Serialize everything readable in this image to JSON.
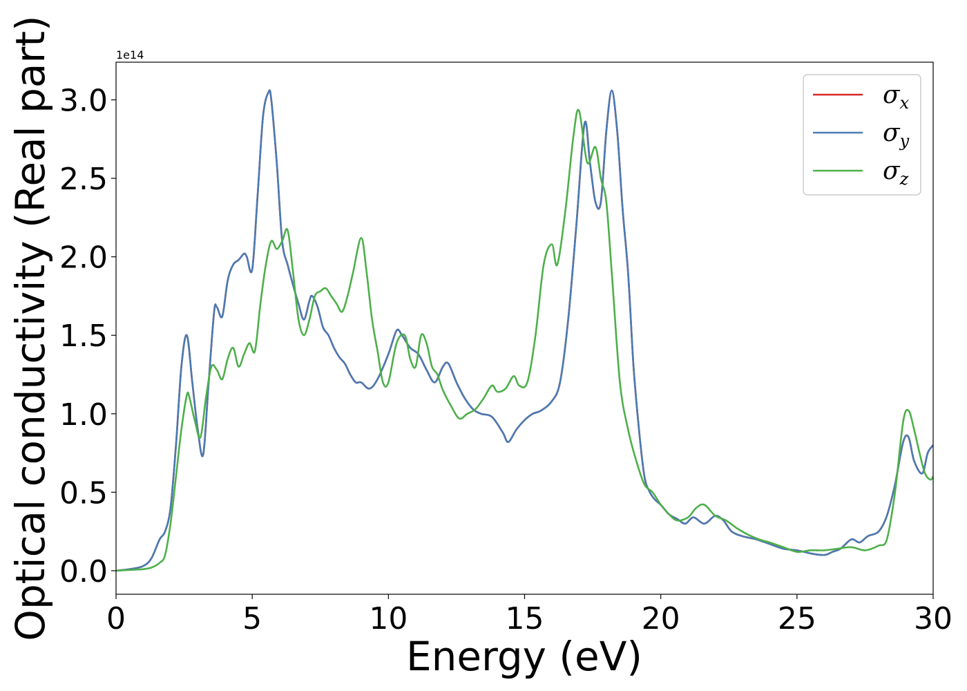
{
  "chart_data": {
    "type": "line",
    "title": "",
    "xlabel": "Energy (eV)",
    "ylabel": "Optical conductivity (Real part)",
    "y_offset_label": "1e14",
    "xlim": [
      0,
      30
    ],
    "ylim": [
      -0.15,
      3.24
    ],
    "xticks": [
      0,
      5,
      10,
      15,
      20,
      25,
      30
    ],
    "xtick_labels": [
      "0",
      "5",
      "10",
      "15",
      "20",
      "25",
      "30"
    ],
    "yticks": [
      0.0,
      0.5,
      1.0,
      1.5,
      2.0,
      2.5,
      3.0
    ],
    "ytick_labels": [
      "0.0",
      "0.5",
      "1.0",
      "1.5",
      "2.0",
      "2.5",
      "3.0"
    ],
    "grid": false,
    "legend_position": "top-right",
    "series": [
      {
        "name": "σx",
        "symbol": "σ",
        "subscript": "x",
        "color": "#d62728",
        "x": [
          0,
          0.5,
          1,
          1.3,
          1.6,
          1.8,
          2.0,
          2.2,
          2.4,
          2.6,
          2.8,
          3.0,
          3.2,
          3.4,
          3.6,
          3.7,
          3.9,
          4.1,
          4.3,
          4.5,
          4.7,
          4.8,
          5.0,
          5.2,
          5.4,
          5.6,
          5.7,
          5.9,
          6.1,
          6.3,
          6.5,
          6.7,
          6.9,
          7.1,
          7.2,
          7.4,
          7.6,
          7.8,
          8.0,
          8.2,
          8.4,
          8.6,
          8.8,
          9.0,
          9.3,
          9.6,
          10.0,
          10.3,
          10.5,
          10.8,
          11.1,
          11.4,
          11.7,
          12.0,
          12.2,
          12.5,
          12.8,
          13.1,
          13.4,
          13.8,
          14.2,
          14.4,
          14.7,
          15.0,
          15.3,
          15.6,
          16.0,
          16.3,
          16.6,
          16.9,
          17.2,
          17.4,
          17.6,
          17.8,
          18.0,
          18.2,
          18.4,
          18.6,
          18.8,
          19.0,
          19.2,
          19.4,
          19.6,
          19.8,
          20.0,
          20.3,
          20.6,
          20.9,
          21.2,
          21.6,
          22.0,
          22.3,
          22.6,
          23.0,
          23.5,
          24.0,
          24.5,
          25.0,
          25.5,
          26.0,
          26.3,
          26.6,
          27.0,
          27.3,
          27.6,
          28.0,
          28.3,
          28.6,
          28.9,
          29.1,
          29.3,
          29.6,
          29.8,
          30.0
        ],
        "values": [
          0,
          0.01,
          0.03,
          0.08,
          0.2,
          0.25,
          0.4,
          0.8,
          1.3,
          1.5,
          1.2,
          0.9,
          0.74,
          1.2,
          1.65,
          1.68,
          1.62,
          1.85,
          1.95,
          1.98,
          2.02,
          2.0,
          1.92,
          2.4,
          2.9,
          3.05,
          3.0,
          2.6,
          2.1,
          1.95,
          1.82,
          1.7,
          1.6,
          1.72,
          1.75,
          1.68,
          1.55,
          1.5,
          1.42,
          1.36,
          1.32,
          1.25,
          1.2,
          1.2,
          1.16,
          1.22,
          1.38,
          1.53,
          1.5,
          1.42,
          1.38,
          1.28,
          1.2,
          1.3,
          1.32,
          1.2,
          1.1,
          1.03,
          1.0,
          0.98,
          0.88,
          0.82,
          0.9,
          0.96,
          1.0,
          1.02,
          1.08,
          1.2,
          1.6,
          2.2,
          2.85,
          2.6,
          2.35,
          2.35,
          2.8,
          3.06,
          2.8,
          2.3,
          1.9,
          1.3,
          0.9,
          0.6,
          0.5,
          0.45,
          0.42,
          0.36,
          0.33,
          0.3,
          0.34,
          0.3,
          0.35,
          0.32,
          0.25,
          0.22,
          0.2,
          0.17,
          0.14,
          0.13,
          0.11,
          0.1,
          0.12,
          0.14,
          0.2,
          0.18,
          0.22,
          0.25,
          0.35,
          0.55,
          0.82,
          0.85,
          0.7,
          0.62,
          0.75,
          0.8
        ]
      },
      {
        "name": "σy",
        "symbol": "σ",
        "subscript": "y",
        "color": "#4a7bb3",
        "x": [
          0,
          0.5,
          1,
          1.3,
          1.6,
          1.8,
          2.0,
          2.2,
          2.4,
          2.6,
          2.8,
          3.0,
          3.2,
          3.4,
          3.6,
          3.7,
          3.9,
          4.1,
          4.3,
          4.5,
          4.7,
          4.8,
          5.0,
          5.2,
          5.4,
          5.6,
          5.7,
          5.9,
          6.1,
          6.3,
          6.5,
          6.7,
          6.9,
          7.1,
          7.2,
          7.4,
          7.6,
          7.8,
          8.0,
          8.2,
          8.4,
          8.6,
          8.8,
          9.0,
          9.3,
          9.6,
          10.0,
          10.3,
          10.5,
          10.8,
          11.1,
          11.4,
          11.7,
          12.0,
          12.2,
          12.5,
          12.8,
          13.1,
          13.4,
          13.8,
          14.2,
          14.4,
          14.7,
          15.0,
          15.3,
          15.6,
          16.0,
          16.3,
          16.6,
          16.9,
          17.2,
          17.4,
          17.6,
          17.8,
          18.0,
          18.2,
          18.4,
          18.6,
          18.8,
          19.0,
          19.2,
          19.4,
          19.6,
          19.8,
          20.0,
          20.3,
          20.6,
          20.9,
          21.2,
          21.6,
          22.0,
          22.3,
          22.6,
          23.0,
          23.5,
          24.0,
          24.5,
          25.0,
          25.5,
          26.0,
          26.3,
          26.6,
          27.0,
          27.3,
          27.6,
          28.0,
          28.3,
          28.6,
          28.9,
          29.1,
          29.3,
          29.6,
          29.8,
          30.0
        ],
        "values": [
          0,
          0.01,
          0.03,
          0.08,
          0.2,
          0.25,
          0.4,
          0.8,
          1.3,
          1.5,
          1.2,
          0.9,
          0.74,
          1.2,
          1.65,
          1.68,
          1.62,
          1.85,
          1.95,
          1.98,
          2.02,
          2.0,
          1.92,
          2.4,
          2.9,
          3.05,
          3.0,
          2.6,
          2.1,
          1.95,
          1.82,
          1.7,
          1.6,
          1.72,
          1.75,
          1.68,
          1.55,
          1.5,
          1.42,
          1.36,
          1.32,
          1.25,
          1.2,
          1.2,
          1.16,
          1.22,
          1.38,
          1.53,
          1.5,
          1.42,
          1.38,
          1.28,
          1.2,
          1.3,
          1.32,
          1.2,
          1.1,
          1.03,
          1.0,
          0.98,
          0.88,
          0.82,
          0.9,
          0.96,
          1.0,
          1.02,
          1.08,
          1.2,
          1.6,
          2.2,
          2.85,
          2.6,
          2.35,
          2.35,
          2.8,
          3.06,
          2.8,
          2.3,
          1.9,
          1.3,
          0.9,
          0.6,
          0.5,
          0.45,
          0.42,
          0.36,
          0.33,
          0.3,
          0.34,
          0.3,
          0.35,
          0.32,
          0.25,
          0.22,
          0.2,
          0.17,
          0.14,
          0.13,
          0.11,
          0.1,
          0.12,
          0.14,
          0.2,
          0.18,
          0.22,
          0.25,
          0.35,
          0.55,
          0.82,
          0.85,
          0.7,
          0.62,
          0.75,
          0.8
        ]
      },
      {
        "name": "σz",
        "symbol": "σ",
        "subscript": "z",
        "color": "#4daf4a",
        "x": [
          0,
          0.5,
          1,
          1.3,
          1.6,
          1.8,
          2.0,
          2.2,
          2.4,
          2.6,
          2.7,
          2.9,
          3.1,
          3.3,
          3.5,
          3.7,
          3.9,
          4.1,
          4.3,
          4.5,
          4.7,
          4.9,
          5.1,
          5.3,
          5.5,
          5.7,
          5.9,
          6.1,
          6.3,
          6.5,
          6.7,
          6.9,
          7.1,
          7.3,
          7.5,
          7.7,
          7.9,
          8.1,
          8.3,
          8.5,
          8.7,
          9.0,
          9.2,
          9.4,
          9.6,
          9.8,
          10.0,
          10.3,
          10.6,
          10.8,
          11.0,
          11.2,
          11.4,
          11.6,
          11.8,
          12.0,
          12.3,
          12.6,
          12.9,
          13.2,
          13.5,
          13.8,
          14.0,
          14.3,
          14.6,
          14.8,
          15.1,
          15.4,
          15.7,
          16.0,
          16.2,
          16.5,
          16.8,
          17.0,
          17.3,
          17.6,
          17.8,
          18.0,
          18.2,
          18.5,
          18.8,
          19.1,
          19.4,
          19.7,
          20.0,
          20.3,
          20.6,
          21.0,
          21.3,
          21.6,
          22.0,
          22.4,
          22.8,
          23.2,
          23.6,
          24.0,
          24.5,
          25.0,
          25.5,
          26.0,
          26.5,
          27.0,
          27.5,
          28.0,
          28.3,
          28.6,
          28.9,
          29.1,
          29.3,
          29.5,
          29.7,
          29.9,
          30.0
        ],
        "values": [
          0,
          0.005,
          0.01,
          0.02,
          0.05,
          0.1,
          0.3,
          0.6,
          0.9,
          1.12,
          1.1,
          0.95,
          0.85,
          1.1,
          1.3,
          1.28,
          1.22,
          1.35,
          1.42,
          1.3,
          1.38,
          1.45,
          1.4,
          1.7,
          1.95,
          2.1,
          2.05,
          2.1,
          2.17,
          1.9,
          1.6,
          1.5,
          1.6,
          1.75,
          1.78,
          1.8,
          1.75,
          1.7,
          1.65,
          1.75,
          1.9,
          2.12,
          1.9,
          1.6,
          1.4,
          1.2,
          1.2,
          1.45,
          1.5,
          1.35,
          1.3,
          1.5,
          1.45,
          1.3,
          1.25,
          1.15,
          1.05,
          0.97,
          1.0,
          1.03,
          1.1,
          1.18,
          1.14,
          1.16,
          1.24,
          1.18,
          1.2,
          1.5,
          1.95,
          2.08,
          1.95,
          2.3,
          2.78,
          2.93,
          2.6,
          2.7,
          2.5,
          2.35,
          1.9,
          1.2,
          0.9,
          0.7,
          0.55,
          0.5,
          0.42,
          0.36,
          0.32,
          0.34,
          0.4,
          0.42,
          0.35,
          0.32,
          0.27,
          0.23,
          0.2,
          0.18,
          0.15,
          0.12,
          0.13,
          0.13,
          0.14,
          0.15,
          0.13,
          0.16,
          0.2,
          0.5,
          0.95,
          1.02,
          0.9,
          0.75,
          0.62,
          0.58,
          0.6
        ]
      }
    ]
  }
}
